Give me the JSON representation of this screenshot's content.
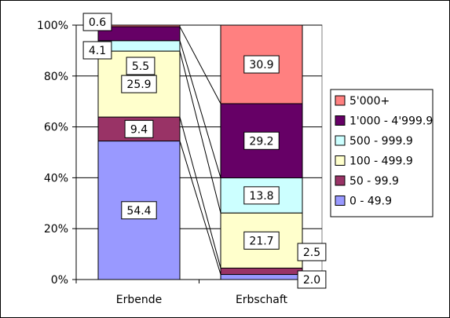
{
  "chart_data": {
    "type": "bar",
    "stacked": "percent",
    "categories": [
      "Erbende",
      "Erbschaft"
    ],
    "series": [
      {
        "name": "0 - 49.9",
        "values": [
          54.4,
          2.0
        ],
        "color": "#9999ff",
        "labels": [
          "54.4",
          "2.0"
        ]
      },
      {
        "name": "50 - 99.9",
        "values": [
          9.4,
          2.5
        ],
        "color": "#993366",
        "labels": [
          "9.4",
          "2.5"
        ]
      },
      {
        "name": "100 - 499.9",
        "values": [
          25.9,
          21.7
        ],
        "color": "#ffffcc",
        "labels": [
          "25.9",
          "21.7"
        ]
      },
      {
        "name": "500 - 999.9",
        "values": [
          4.1,
          13.8
        ],
        "color": "#ccffff",
        "labels": [
          "4.1",
          "13.8"
        ]
      },
      {
        "name": "1'000 - 4'999.9",
        "values": [
          5.5,
          29.2
        ],
        "color": "#660066",
        "labels": [
          "5.5",
          "29.2"
        ]
      },
      {
        "name": "5'000+",
        "values": [
          0.6,
          30.9
        ],
        "color": "#ff8080",
        "labels": [
          "0.6",
          "30.9"
        ]
      }
    ],
    "y_ticks": [
      "0%",
      "20%",
      "40%",
      "60%",
      "80%",
      "100%"
    ],
    "ylim": [
      0,
      100
    ],
    "grid": "horizontal",
    "series_lines": true,
    "legend": {
      "position": "right"
    },
    "title": "",
    "xlabel": "",
    "ylabel": ""
  }
}
